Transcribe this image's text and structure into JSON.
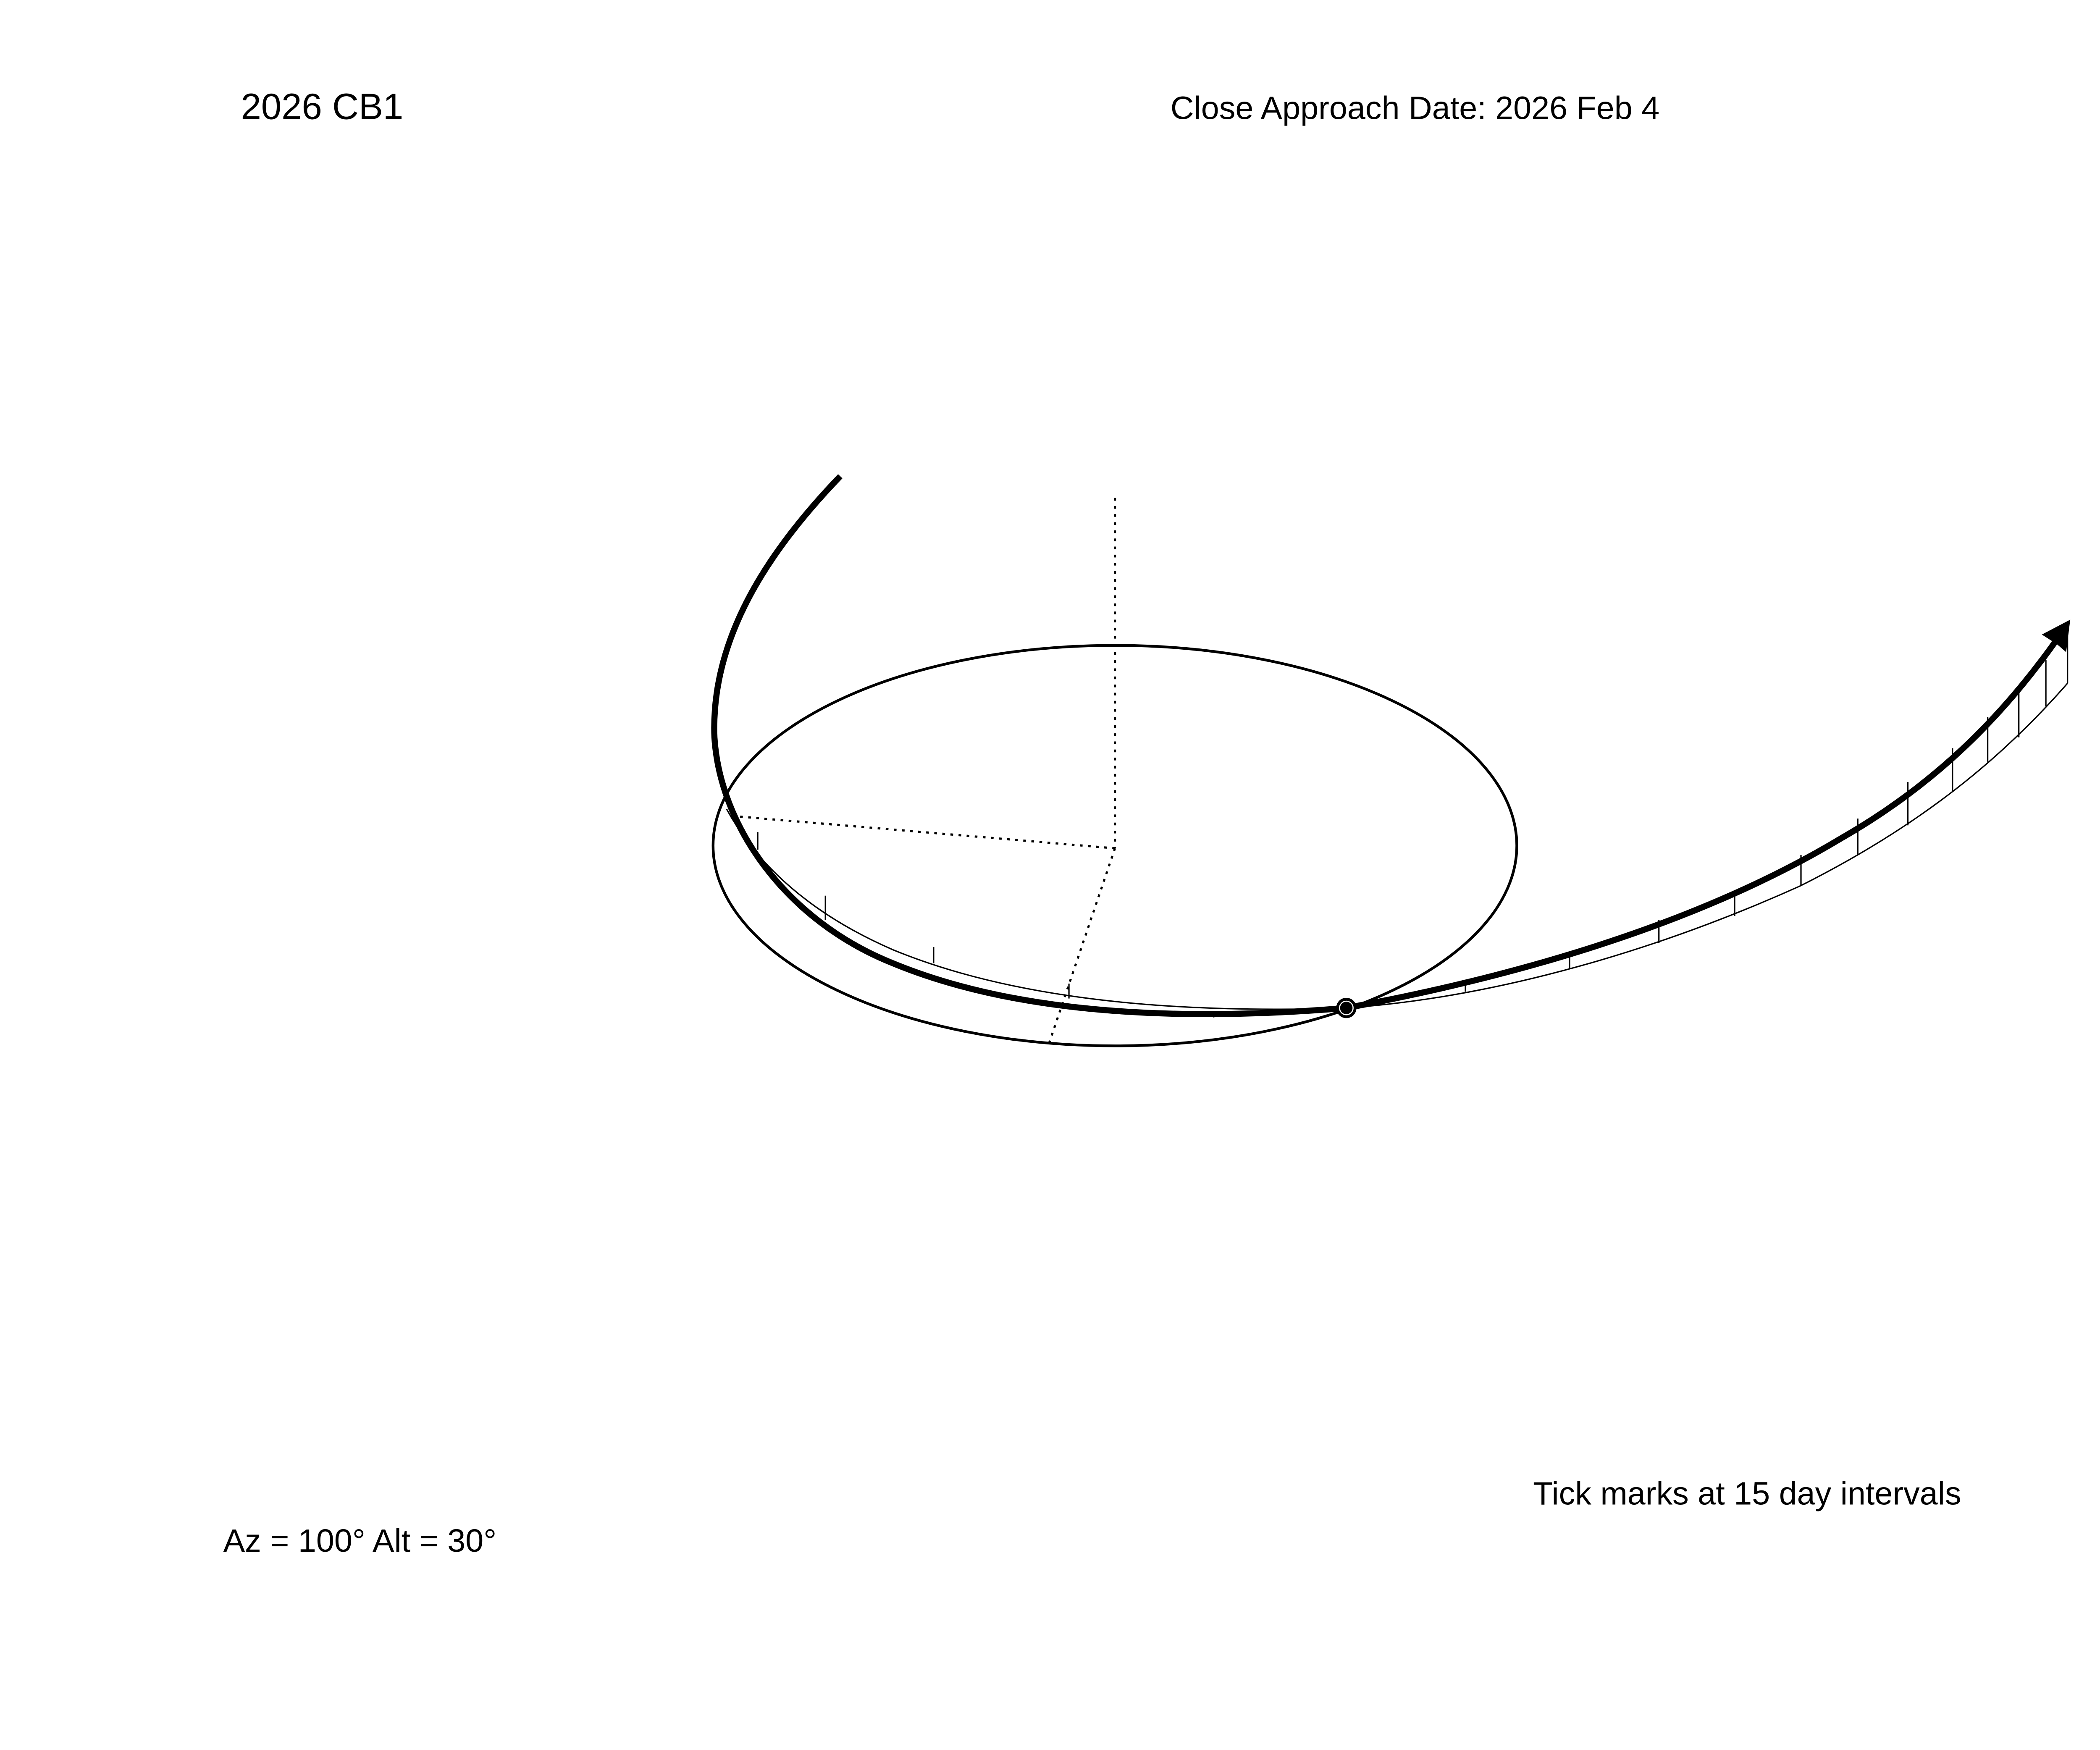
{
  "header": {
    "object_name": "2026 CB1",
    "close_approach_label": "Close Approach Date:  2026 Feb  4"
  },
  "footer": {
    "tick_note": "Tick marks at  15 day intervals",
    "view_angles": "Az = 100°     Alt =  30°"
  },
  "diagram": {
    "view_azimuth_deg": 100,
    "view_altitude_deg": 30,
    "tick_interval_days": 15,
    "colors": {
      "ink": "#000000",
      "background": "#ffffff"
    },
    "elements": [
      "earth-orbit",
      "asteroid-orbit",
      "ecliptic-projection",
      "earth-marker",
      "direction-arrow",
      "reference-axes"
    ]
  }
}
